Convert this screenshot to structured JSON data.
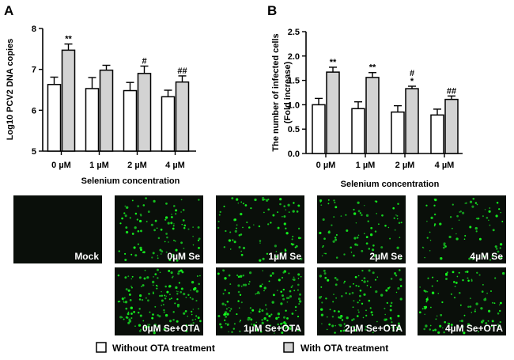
{
  "figure": {
    "panel_a_letter": "A",
    "panel_b_letter": "B",
    "legend": {
      "without_label": "Without OTA treatment",
      "with_label": "With OTA treatment",
      "without_color": "#ffffff",
      "with_color": "#d3d3d3"
    }
  },
  "chart_data": [
    {
      "type": "bar",
      "panel": "A",
      "categories": [
        "0 µM",
        "1 µM",
        "2 µM",
        "4 µM"
      ],
      "xlabel": "Selenium concentration",
      "ylabel": "Log10 PCV2 DNA copies",
      "ylim": [
        5,
        8
      ],
      "yticks": [
        "5",
        "6",
        "7",
        "8"
      ],
      "grid": false,
      "series": [
        {
          "name": "Without OTA treatment",
          "color": "#ffffff",
          "values": [
            6.63,
            6.53,
            6.48,
            6.33
          ],
          "errors": [
            0.18,
            0.27,
            0.2,
            0.16
          ]
        },
        {
          "name": "With OTA treatment",
          "color": "#d3d3d3",
          "values": [
            7.47,
            6.98,
            6.9,
            6.69
          ],
          "errors": [
            0.15,
            0.12,
            0.18,
            0.15
          ]
        }
      ],
      "annotations": [
        {
          "category": 0,
          "series": 1,
          "text": "**"
        },
        {
          "category": 2,
          "series": 1,
          "text": "#"
        },
        {
          "category": 3,
          "series": 1,
          "text": "##"
        }
      ]
    },
    {
      "type": "bar",
      "panel": "B",
      "categories": [
        "0 µM",
        "1 µM",
        "2 µM",
        "4 µM"
      ],
      "xlabel": "Selenium concentration",
      "ylabel": "The number of infected cells",
      "ylabel2": "(Fold increase)",
      "ylim": [
        0,
        2.5
      ],
      "yticks": [
        "0.0",
        "0.5",
        "1.0",
        "1.5",
        "2.0",
        "2.5"
      ],
      "grid": false,
      "series": [
        {
          "name": "Without OTA treatment",
          "color": "#ffffff",
          "values": [
            1.0,
            0.92,
            0.85,
            0.79
          ],
          "errors": [
            0.13,
            0.14,
            0.13,
            0.12
          ]
        },
        {
          "name": "With OTA treatment",
          "color": "#d3d3d3",
          "values": [
            1.67,
            1.56,
            1.33,
            1.11
          ],
          "errors": [
            0.1,
            0.1,
            0.05,
            0.07
          ]
        }
      ],
      "annotations": [
        {
          "category": 0,
          "series": 1,
          "text": "**"
        },
        {
          "category": 1,
          "series": 1,
          "text": "**"
        },
        {
          "category": 2,
          "series": 1,
          "text": "*"
        },
        {
          "category": 2,
          "series": 1,
          "text": "#"
        },
        {
          "category": 3,
          "series": 1,
          "text": "##"
        }
      ]
    }
  ],
  "micrographs": {
    "top_row": [
      {
        "label": "Mock",
        "infected_level": 0.0
      },
      {
        "label": "0µM Se",
        "infected_level": 1.0
      },
      {
        "label": "1µM Se",
        "infected_level": 0.92
      },
      {
        "label": "2µM Se",
        "infected_level": 0.85
      },
      {
        "label": "4µM Se",
        "infected_level": 0.79
      }
    ],
    "bottom_row": [
      {
        "label": "0µM Se+OTA",
        "infected_level": 1.67
      },
      {
        "label": "1µM Se+OTA",
        "infected_level": 1.56
      },
      {
        "label": "2µM Se+OTA",
        "infected_level": 1.33
      },
      {
        "label": "4µM Se+OTA",
        "infected_level": 1.11
      }
    ]
  }
}
